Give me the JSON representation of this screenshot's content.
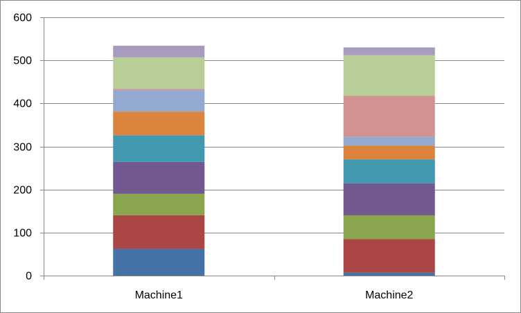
{
  "chart_data": {
    "type": "bar",
    "stacked": true,
    "categories": [
      "Machine1",
      "Machine2"
    ],
    "series": [
      {
        "color": "#4572A7",
        "values": [
          62,
          7
        ]
      },
      {
        "color": "#AA4643",
        "values": [
          78,
          78
        ]
      },
      {
        "color": "#89A54E",
        "values": [
          50,
          55
        ]
      },
      {
        "color": "#71588F",
        "values": [
          74,
          74
        ]
      },
      {
        "color": "#4198AF",
        "values": [
          62,
          56
        ]
      },
      {
        "color": "#DB843D",
        "values": [
          55,
          32
        ]
      },
      {
        "color": "#93A9CF",
        "values": [
          50,
          20
        ]
      },
      {
        "color": "#D19392",
        "values": [
          3,
          96
        ]
      },
      {
        "color": "#B9CD96",
        "values": [
          73,
          94
        ]
      },
      {
        "color": "#A99BBD",
        "values": [
          27,
          18
        ]
      }
    ],
    "ylim": [
      0,
      600
    ],
    "yticks": [
      "0",
      "100",
      "200",
      "300",
      "400",
      "500",
      "600"
    ],
    "title": "",
    "xlabel": "",
    "ylabel": "",
    "grid": true,
    "legend": "none"
  }
}
